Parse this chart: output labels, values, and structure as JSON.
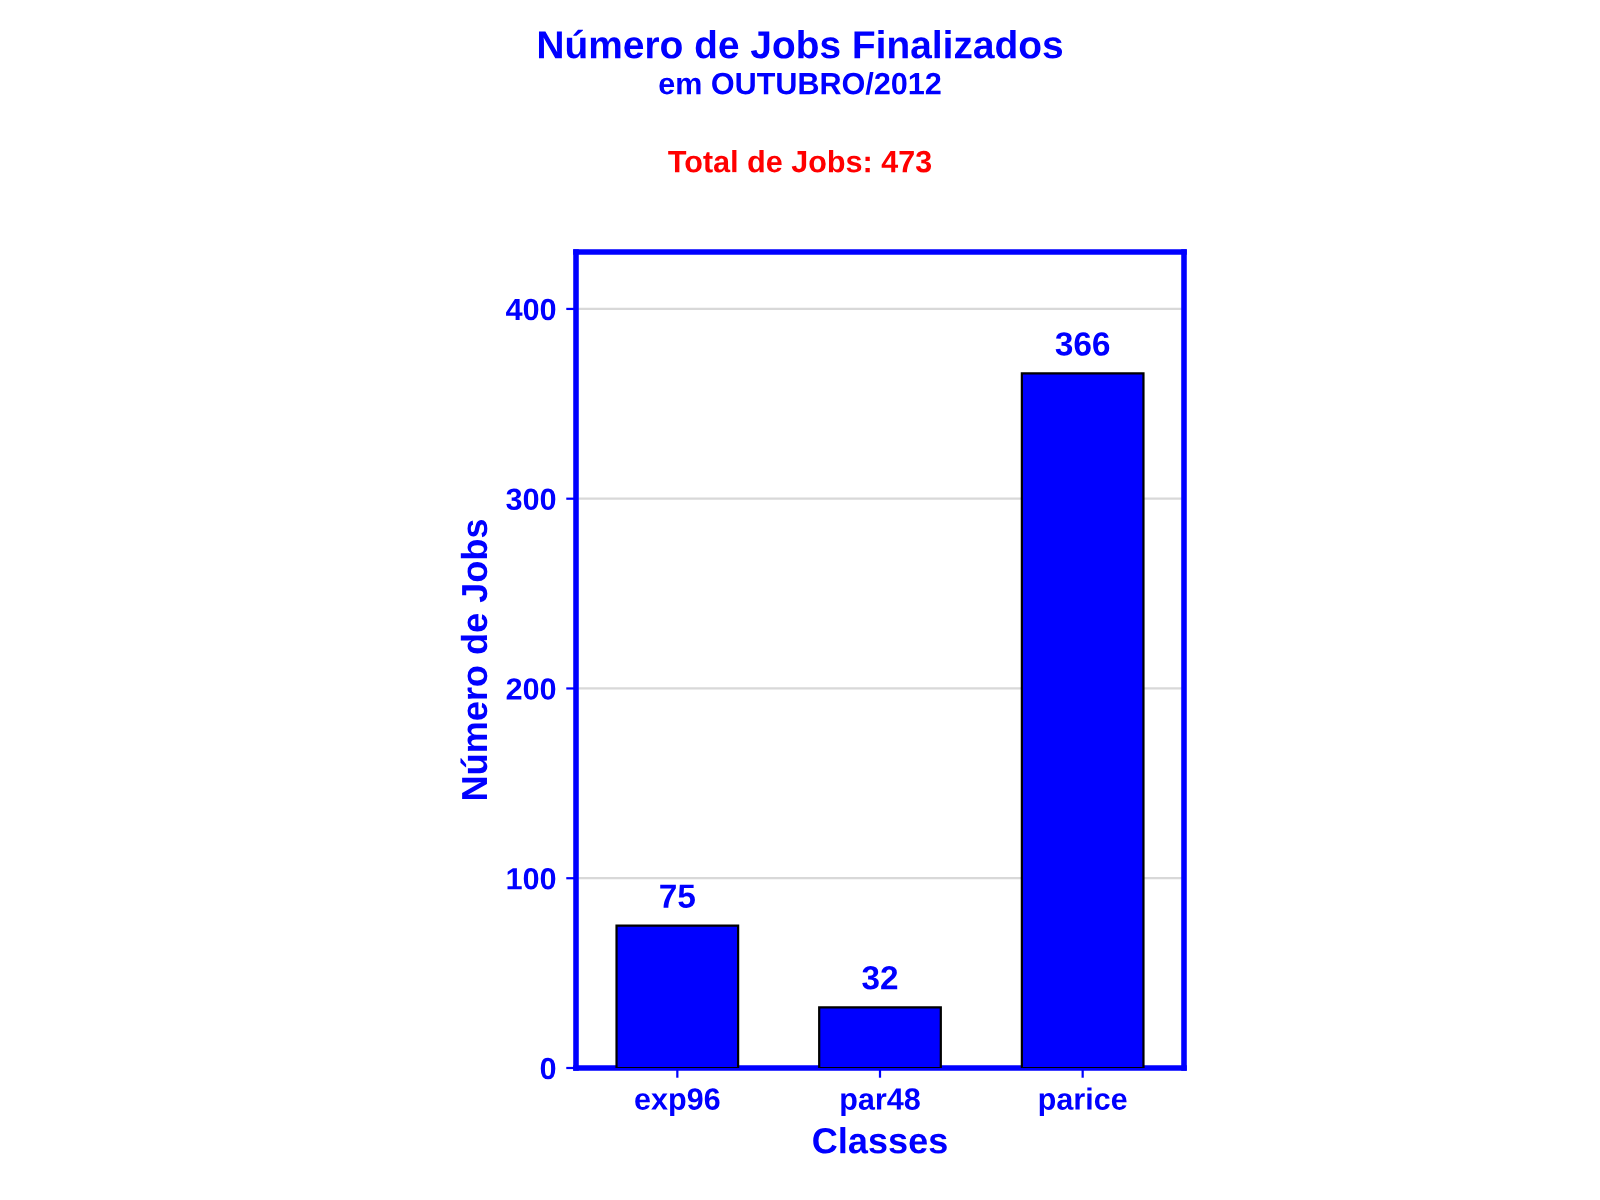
{
  "chart_data": {
    "type": "bar",
    "title": "Número de Jobs Finalizados",
    "subtitle": "em OUTUBRO/2012",
    "annotations": [
      "Total de Jobs: 473"
    ],
    "xlabel": "Classes",
    "ylabel": "Número de Jobs",
    "categories": [
      "exp96",
      "par48",
      "parice"
    ],
    "values": [
      75,
      32,
      366
    ],
    "color": "#0000ff",
    "ylim": [
      0,
      430
    ],
    "yticks": [
      0,
      100,
      200,
      300,
      400
    ],
    "grid": "y",
    "data_labels": true,
    "legend": false
  }
}
